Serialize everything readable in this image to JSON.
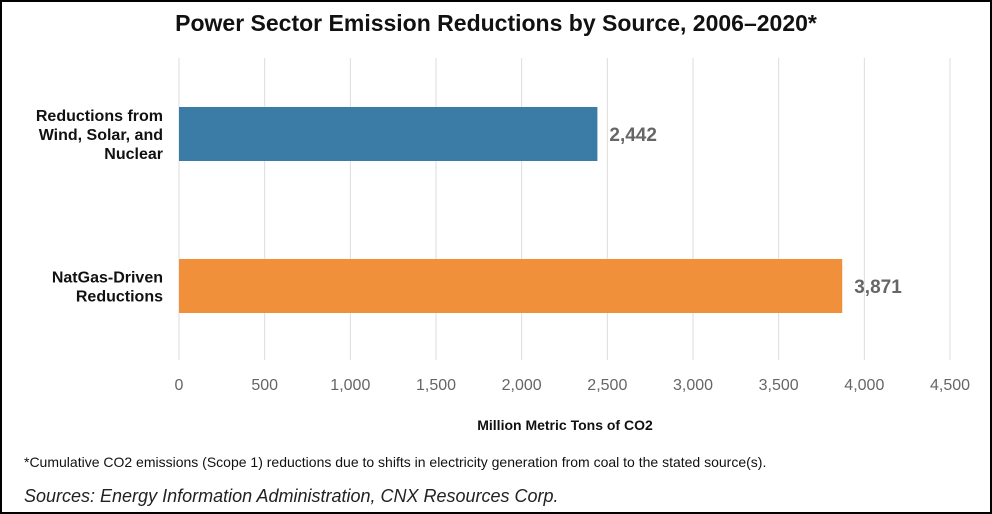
{
  "chart_data": {
    "type": "bar",
    "orientation": "horizontal",
    "title": "Power Sector Emission Reductions by Source, 2006–2020*",
    "categories": [
      [
        "Reductions from",
        "Wind, Solar, and",
        "Nuclear"
      ],
      [
        "NatGas-Driven",
        "Reductions"
      ]
    ],
    "values": [
      2442,
      3871
    ],
    "value_labels": [
      "2,442",
      "3,871"
    ],
    "colors": [
      "#3a7ca5",
      "#f0903a"
    ],
    "xlabel": "Million Metric Tons of CO2",
    "ylabel": "",
    "xlim": [
      0,
      4500
    ],
    "xticks": [
      0,
      500,
      1000,
      1500,
      2000,
      2500,
      3000,
      3500,
      4000,
      4500
    ],
    "xtick_labels": [
      "0",
      "500",
      "1,000",
      "1,500",
      "2,000",
      "2,500",
      "3,000",
      "3,500",
      "4,000",
      "4,500"
    ],
    "grid": true
  },
  "footnote": "*Cumulative CO2 emissions (Scope 1) reductions due to shifts in electricity generation from coal to the stated source(s).",
  "sources": "Sources: Energy Information Administration, CNX Resources Corp."
}
